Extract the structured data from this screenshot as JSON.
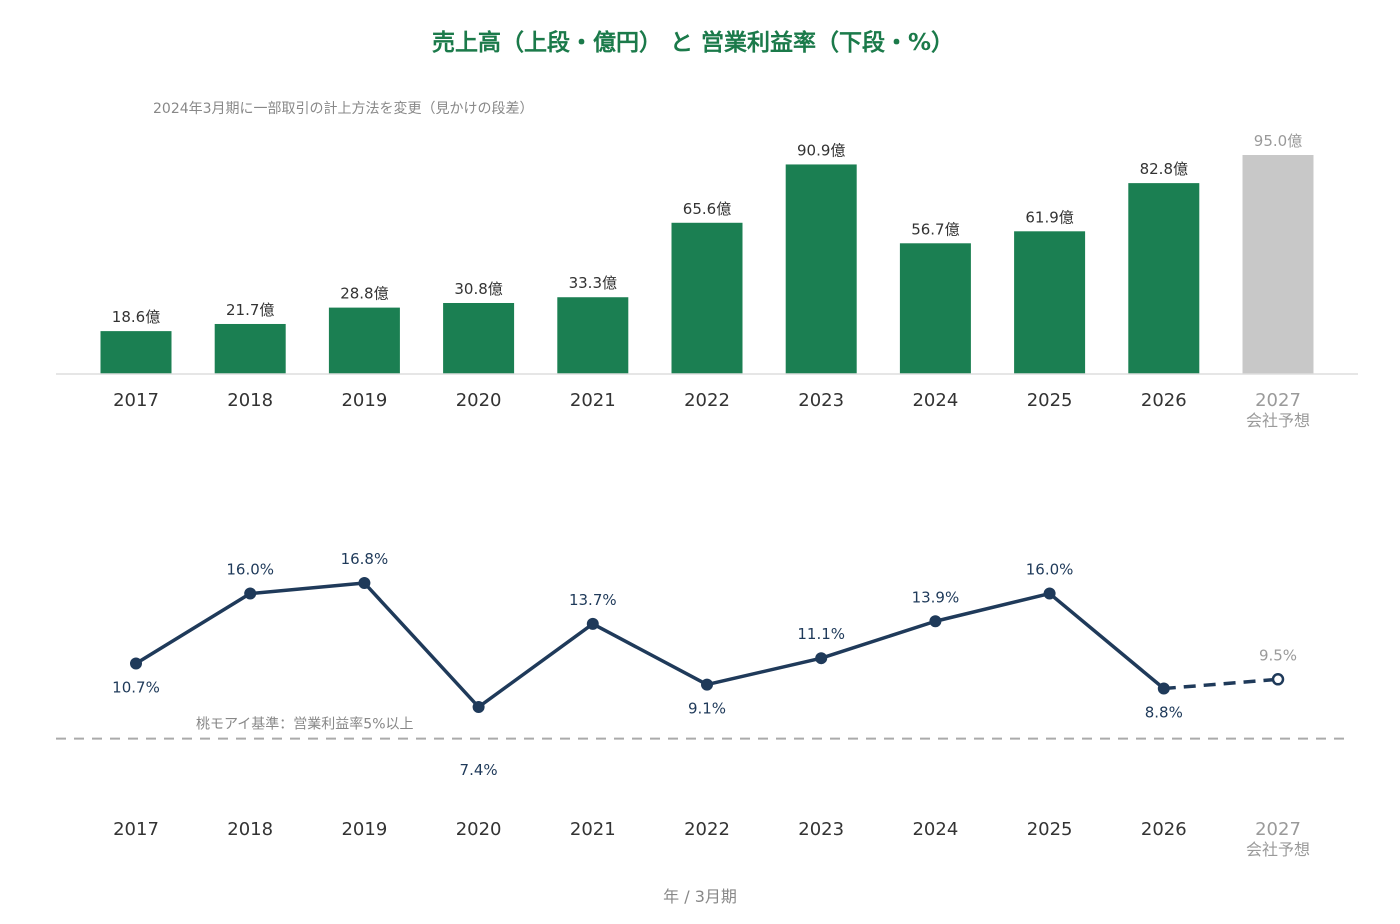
{
  "title": "売上高（上段・億円） と 営業利益率（下段・%）",
  "colors": {
    "title": "#1b7a4a",
    "bar_actual": "#1b7f52",
    "bar_forecast": "#c8c8c8",
    "line": "#1f3a5a",
    "forecast_text": "#9a9a9a",
    "axis_text": "#333333",
    "baseline": "#aaaaaa",
    "note_text": "#888888"
  },
  "xlabel": "年 / 3月期",
  "chart_data": [
    {
      "type": "bar",
      "title": "売上高（上段・億円）",
      "note": "2024年3月期に一部取引の計上方法を変更（見かけの段差）",
      "categories": [
        "2017",
        "2018",
        "2019",
        "2020",
        "2021",
        "2022",
        "2023",
        "2024",
        "2025",
        "2026",
        "2027"
      ],
      "forecast_sublabel": "会社予想",
      "values": [
        18.6,
        21.7,
        28.8,
        30.8,
        33.3,
        65.6,
        90.9,
        56.7,
        61.9,
        82.8,
        95.0
      ],
      "data_labels": [
        "18.6億",
        "21.7億",
        "28.8億",
        "30.8億",
        "33.3億",
        "65.6億",
        "90.9億",
        "56.7億",
        "61.9億",
        "82.8億",
        "95.0億"
      ],
      "forecast_index": 10,
      "ylim": [
        0,
        95
      ]
    },
    {
      "type": "line",
      "title": "営業利益率（下段・%）",
      "categories": [
        "2017",
        "2018",
        "2019",
        "2020",
        "2021",
        "2022",
        "2023",
        "2024",
        "2025",
        "2026",
        "2027"
      ],
      "forecast_sublabel": "会社予想",
      "values": [
        10.7,
        16.0,
        16.8,
        7.4,
        13.7,
        9.1,
        11.1,
        13.9,
        16.0,
        8.8,
        9.5
      ],
      "data_labels": [
        "10.7%",
        "16.0%",
        "16.8%",
        "7.4%",
        "13.7%",
        "9.1%",
        "11.1%",
        "13.9%",
        "16.0%",
        "8.8%",
        "9.5%"
      ],
      "label_positions": [
        "below",
        "above",
        "above",
        "below",
        "above",
        "below",
        "above",
        "above",
        "above",
        "below",
        "above"
      ],
      "forecast_index": 10,
      "reference_line": {
        "value": 5,
        "label": "桃モアイ基準：営業利益率5%以上"
      }
    }
  ]
}
